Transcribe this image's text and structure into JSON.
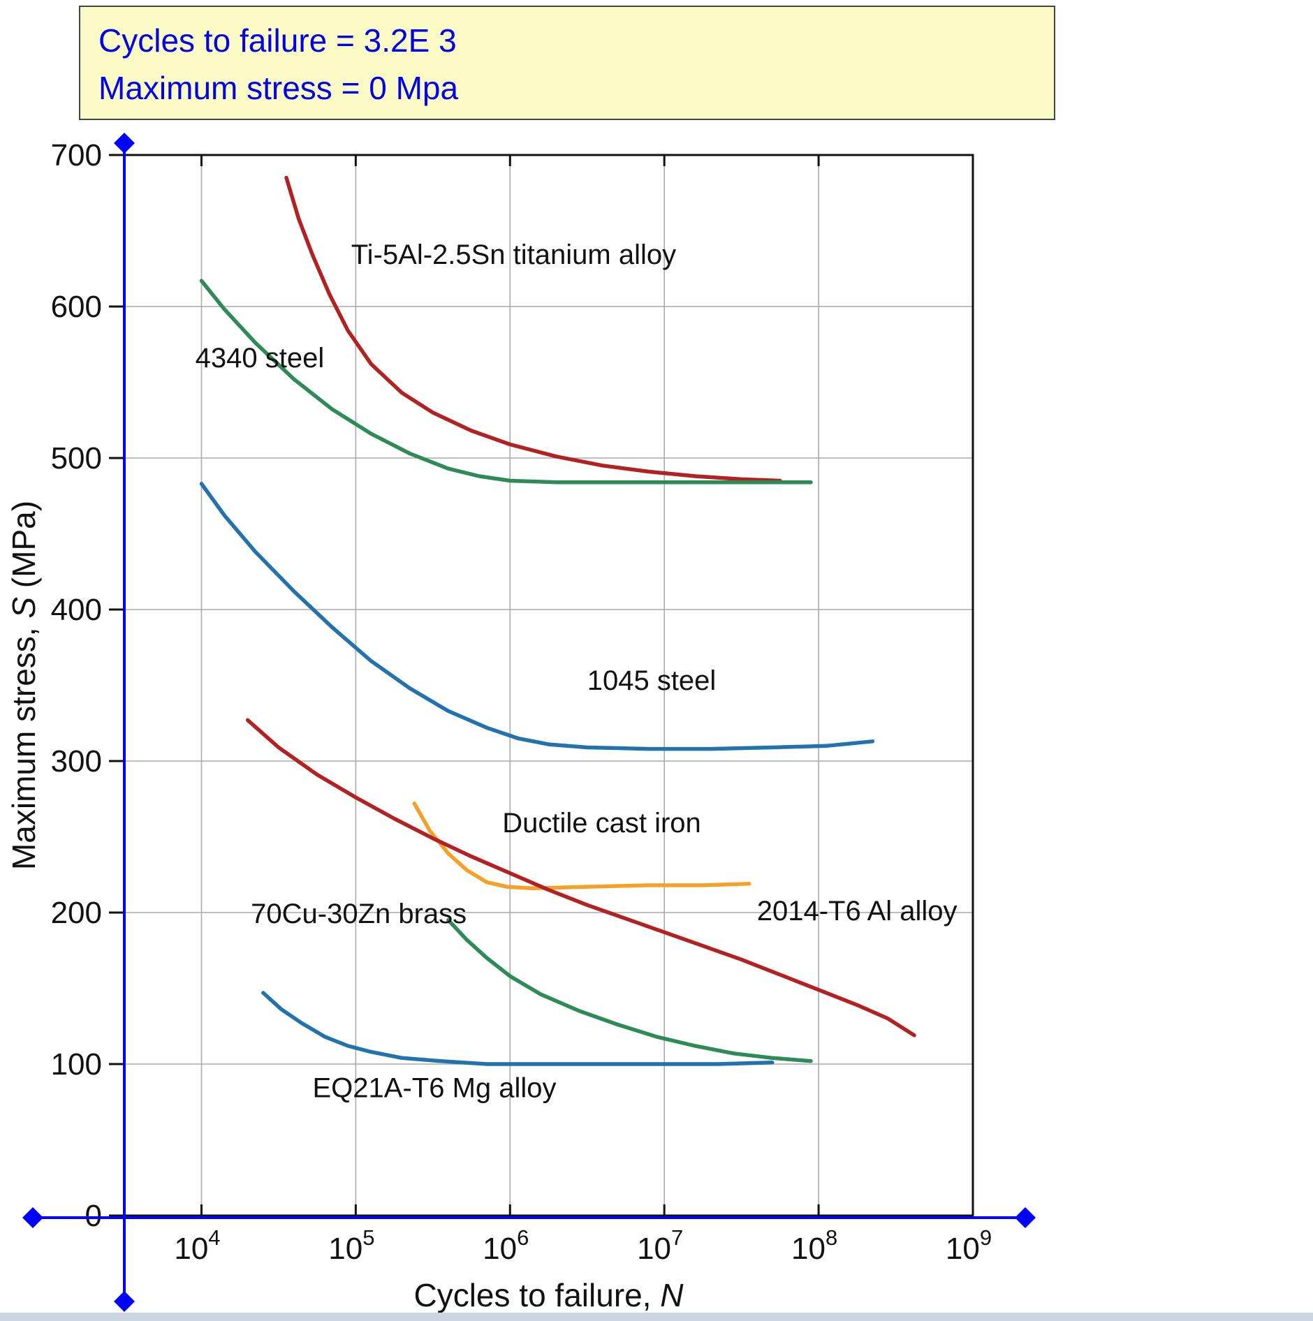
{
  "readout": {
    "cycles_label": "Cycles to failure = 3.2E 3",
    "stress_label": "Maximum stress = 0 Mpa",
    "text_color": "#0000ee",
    "background": "#fbfbc6",
    "border_color": "#444444"
  },
  "window": {
    "bottom_strip_color": "#ccd6e2"
  },
  "chart_data": {
    "type": "line",
    "title": "",
    "xlabel": {
      "prefix": "Cycles to failure, ",
      "variable": "N"
    },
    "ylabel": {
      "prefix": "Maximum stress, ",
      "variable": "S",
      "suffix": " (MPa)"
    },
    "x_scale": "log",
    "x_units": "log10(cycles)",
    "y_units": "MPa",
    "x_range_log10": [
      3.5,
      9.0
    ],
    "x_tick_exponents": [
      4,
      5,
      6,
      7,
      8,
      9
    ],
    "ylim": [
      0,
      700
    ],
    "y_ticks": [
      0,
      100,
      200,
      300,
      400,
      500,
      600,
      700
    ],
    "grid": true,
    "grid_color": "#aaaaaa",
    "axis_color": "#111111",
    "series": [
      {
        "name": "Ti-5Al-2.5Sn titanium alloy",
        "color": "#b22222",
        "points": [
          [
            4.55,
            685
          ],
          [
            4.63,
            658
          ],
          [
            4.72,
            634
          ],
          [
            4.83,
            608
          ],
          [
            4.95,
            584
          ],
          [
            5.1,
            562
          ],
          [
            5.3,
            543
          ],
          [
            5.5,
            530
          ],
          [
            5.75,
            518
          ],
          [
            6.0,
            509
          ],
          [
            6.3,
            501
          ],
          [
            6.6,
            495
          ],
          [
            6.9,
            491
          ],
          [
            7.2,
            488
          ],
          [
            7.5,
            486
          ],
          [
            7.75,
            485
          ]
        ]
      },
      {
        "name": "4340 steel",
        "color": "#2e8b57",
        "points": [
          [
            4.0,
            617
          ],
          [
            4.15,
            598
          ],
          [
            4.35,
            576
          ],
          [
            4.6,
            552
          ],
          [
            4.85,
            532
          ],
          [
            5.1,
            516
          ],
          [
            5.35,
            503
          ],
          [
            5.6,
            493
          ],
          [
            5.8,
            488
          ],
          [
            6.0,
            485
          ],
          [
            6.3,
            484
          ],
          [
            6.7,
            484
          ],
          [
            7.1,
            484
          ],
          [
            7.5,
            484
          ],
          [
            7.95,
            484
          ]
        ]
      },
      {
        "name": "1045 steel",
        "color": "#2272ae",
        "points": [
          [
            4.0,
            483
          ],
          [
            4.15,
            462
          ],
          [
            4.35,
            438
          ],
          [
            4.6,
            412
          ],
          [
            4.85,
            388
          ],
          [
            5.1,
            366
          ],
          [
            5.35,
            348
          ],
          [
            5.6,
            333
          ],
          [
            5.85,
            322
          ],
          [
            6.05,
            315
          ],
          [
            6.25,
            311
          ],
          [
            6.5,
            309
          ],
          [
            6.9,
            308
          ],
          [
            7.3,
            308
          ],
          [
            7.7,
            309
          ],
          [
            8.05,
            310
          ],
          [
            8.35,
            313
          ]
        ]
      },
      {
        "name": "Ductile cast iron",
        "color": "#f5a028",
        "points": [
          [
            5.38,
            272
          ],
          [
            5.48,
            254
          ],
          [
            5.6,
            239
          ],
          [
            5.72,
            228
          ],
          [
            5.85,
            220
          ],
          [
            5.98,
            217
          ],
          [
            6.15,
            216
          ],
          [
            6.5,
            217
          ],
          [
            6.9,
            218
          ],
          [
            7.25,
            218
          ],
          [
            7.55,
            219
          ]
        ]
      },
      {
        "name": "2014-T6 Al alloy",
        "color": "#b22222",
        "points": [
          [
            4.3,
            327
          ],
          [
            4.5,
            309
          ],
          [
            4.75,
            291
          ],
          [
            5.0,
            276
          ],
          [
            5.25,
            262
          ],
          [
            5.5,
            249
          ],
          [
            5.75,
            237
          ],
          [
            6.0,
            226
          ],
          [
            6.25,
            215
          ],
          [
            6.5,
            205
          ],
          [
            6.75,
            196
          ],
          [
            7.0,
            187
          ],
          [
            7.25,
            178
          ],
          [
            7.5,
            169
          ],
          [
            7.75,
            159
          ],
          [
            8.0,
            149
          ],
          [
            8.25,
            139
          ],
          [
            8.45,
            130
          ],
          [
            8.62,
            119
          ]
        ]
      },
      {
        "name": "70Cu-30Zn brass",
        "color": "#2e8b57",
        "points": [
          [
            5.6,
            195
          ],
          [
            5.72,
            182
          ],
          [
            5.85,
            170
          ],
          [
            6.0,
            158
          ],
          [
            6.2,
            146
          ],
          [
            6.45,
            135
          ],
          [
            6.7,
            126
          ],
          [
            6.95,
            118
          ],
          [
            7.2,
            112
          ],
          [
            7.45,
            107
          ],
          [
            7.7,
            104
          ],
          [
            7.95,
            102
          ]
        ]
      },
      {
        "name": "EQ21A-T6 Mg alloy",
        "color": "#2272ae",
        "points": [
          [
            4.4,
            147
          ],
          [
            4.52,
            136
          ],
          [
            4.65,
            127
          ],
          [
            4.8,
            118
          ],
          [
            4.95,
            112
          ],
          [
            5.1,
            108
          ],
          [
            5.3,
            104
          ],
          [
            5.55,
            102
          ],
          [
            5.85,
            100
          ],
          [
            6.2,
            100
          ],
          [
            6.6,
            100
          ],
          [
            7.0,
            100
          ],
          [
            7.35,
            100
          ],
          [
            7.7,
            101
          ]
        ]
      }
    ],
    "curve_labels": [
      {
        "text": "Ti-5Al-2.5Sn titanium alloy",
        "x_log10": 4.97,
        "y": 628
      },
      {
        "text": "4340 steel",
        "x_log10": 3.96,
        "y": 560
      },
      {
        "text": "1045 steel",
        "x_log10": 6.5,
        "y": 347
      },
      {
        "text": "Ductile cast iron",
        "x_log10": 5.95,
        "y": 253
      },
      {
        "text": "70Cu-30Zn brass",
        "x_log10": 4.32,
        "y": 193
      },
      {
        "text": "2014-T6 Al alloy",
        "x_log10": 7.6,
        "y": 195
      },
      {
        "text": "EQ21A-T6 Mg alloy",
        "x_log10": 4.72,
        "y": 78
      }
    ],
    "crosshair": {
      "color": "#0000ff",
      "x_log10": 3.5,
      "x_value_text": "3.2E 3",
      "y_value": 0,
      "handle": "diamond"
    }
  }
}
